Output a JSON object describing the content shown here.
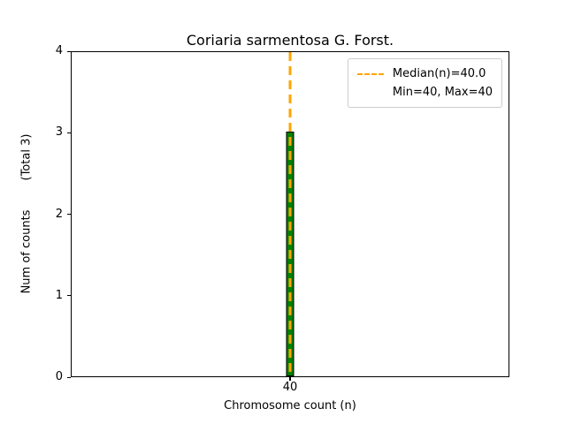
{
  "chart_data": {
    "type": "bar",
    "title": "Coriaria sarmentosa G. Forst.",
    "xlabel": "Chromosome count (n)",
    "ylabel": "Num of counts        (Total 3)",
    "categories": [
      "40"
    ],
    "values": [
      3
    ],
    "ylim": [
      0,
      4
    ],
    "yticks": [
      0,
      1,
      2,
      3,
      4
    ],
    "xticks": [
      "40"
    ],
    "median": 40.0,
    "min": 40,
    "max": 40,
    "legend": {
      "position": "upper right",
      "entries": [
        "Median(n)=40.0",
        "Min=40, Max=40"
      ]
    },
    "colors": {
      "bar": "#008000",
      "bar_edge": "#000000",
      "median": "#FFA500",
      "legend_border": "#CCCCCC"
    },
    "grid": false
  }
}
